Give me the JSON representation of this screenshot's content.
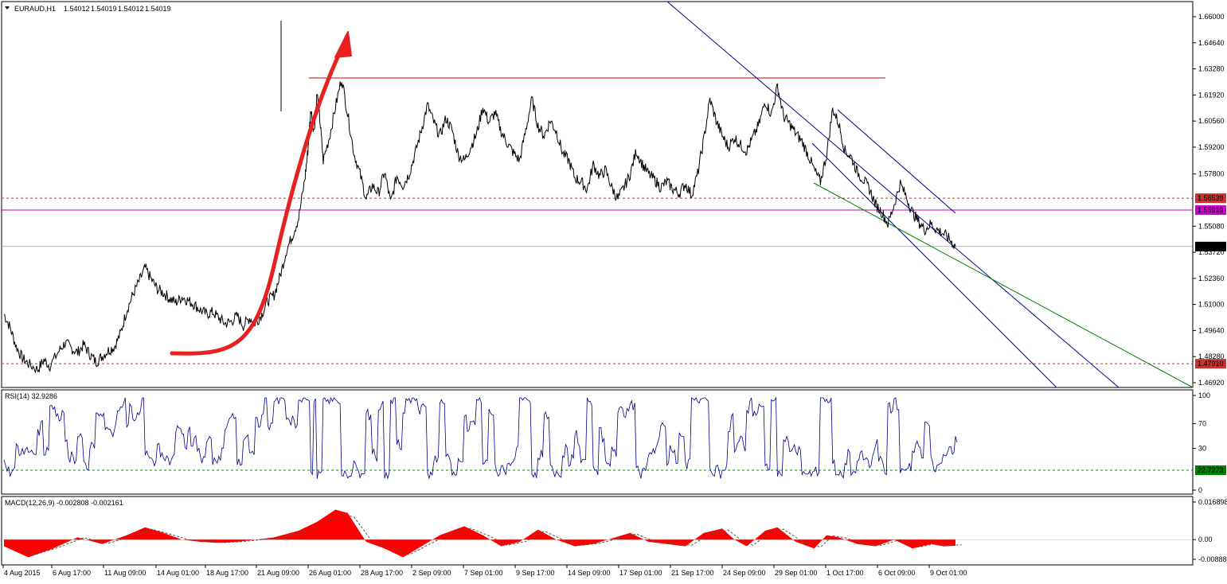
{
  "chart_data": {
    "type": "line",
    "symbol": "EURAUD,H1",
    "ohlc": {
      "open": "1.54012",
      "high": "1.54019",
      "low": "1.54012",
      "close": "1.54019"
    },
    "colors": {
      "price": "#000000",
      "resistance": "#cc0000",
      "support_magenta": "#cc00cc",
      "channel": "#00008b",
      "trend_green": "#008000",
      "arrow": "#e82020",
      "rsi": "#00008b",
      "rsi_level": "#008000",
      "macd_hist": "#ff0000",
      "macd_signal": "#555555",
      "last_bg": "#000000",
      "level_bg": "#c83232",
      "magenta_bg": "#cc00cc",
      "rsi_bg": "#008000"
    },
    "main": {
      "ylim": [
        1.6872,
        1.6668
      ],
      "ylim_data": [
        1.6672,
        1.6668
      ],
      "y_ticks": [
        "1.66000",
        "1.64640",
        "1.63280",
        "1.61920",
        "1.60560",
        "1.59200",
        "1.57800",
        "1.56539",
        "1.55919",
        "1.55080",
        "1.54019",
        "1.53720",
        "1.52360",
        "1.51000",
        "1.49640",
        "1.48280",
        "1.47910",
        "1.46920"
      ],
      "tick_values": [
        1.66,
        1.6464,
        1.6328,
        1.6192,
        1.6056,
        1.592,
        1.578,
        1.5508,
        1.5372,
        1.5236,
        1.51,
        1.4964,
        1.4828,
        1.4692
      ],
      "labels": {
        "last": "1.54019",
        "dashed_upper": "1.56539",
        "magenta": "1.55919",
        "dashed_lower": "1.47910"
      },
      "levels": {
        "dashed_upper": 1.56539,
        "magenta": 1.55919,
        "dashed_lower": 1.4791,
        "resistance": 1.629,
        "last": 1.54019
      },
      "price_series": [
        [
          0,
          1.505
        ],
        [
          2,
          1.498
        ],
        [
          4,
          1.488
        ],
        [
          6,
          1.482
        ],
        [
          8,
          1.479
        ],
        [
          11,
          1.476
        ],
        [
          13,
          1.481
        ],
        [
          15,
          1.478
        ],
        [
          18,
          1.486
        ],
        [
          20,
          1.49
        ],
        [
          22,
          1.487
        ],
        [
          24,
          1.485
        ],
        [
          26,
          1.489
        ],
        [
          28,
          1.484
        ],
        [
          30,
          1.48
        ],
        [
          32,
          1.483
        ],
        [
          34,
          1.486
        ],
        [
          36,
          1.488
        ],
        [
          38,
          1.495
        ],
        [
          40,
          1.507
        ],
        [
          42,
          1.515
        ],
        [
          44,
          1.522
        ],
        [
          46,
          1.529
        ],
        [
          48,
          1.523
        ],
        [
          50,
          1.518
        ],
        [
          52,
          1.516
        ],
        [
          54,
          1.513
        ],
        [
          56,
          1.511
        ],
        [
          58,
          1.514
        ],
        [
          60,
          1.512
        ],
        [
          62,
          1.51
        ],
        [
          64,
          1.507
        ],
        [
          66,
          1.505
        ],
        [
          68,
          1.506
        ],
        [
          70,
          1.503
        ],
        [
          72,
          1.5
        ],
        [
          74,
          1.501
        ],
        [
          76,
          1.504
        ],
        [
          78,
          1.499
        ],
        [
          80,
          1.503
        ],
        [
          82,
          1.5
        ],
        [
          84,
          1.505
        ],
        [
          86,
          1.512
        ],
        [
          88,
          1.515
        ],
        [
          90,
          1.525
        ],
        [
          92,
          1.538
        ],
        [
          94,
          1.546
        ],
        [
          96,
          1.555
        ],
        [
          98,
          1.575
        ],
        [
          99,
          1.59
        ],
        [
          100,
          1.612
        ],
        [
          101,
          1.6
        ],
        [
          102,
          1.62
        ],
        [
          103,
          1.605
        ],
        [
          104,
          1.585
        ],
        [
          106,
          1.597
        ],
        [
          108,
          1.613
        ],
        [
          110,
          1.628
        ],
        [
          112,
          1.609
        ],
        [
          114,
          1.589
        ],
        [
          116,
          1.578
        ],
        [
          118,
          1.565
        ],
        [
          120,
          1.572
        ],
        [
          122,
          1.568
        ],
        [
          124,
          1.579
        ],
        [
          126,
          1.563
        ],
        [
          128,
          1.577
        ],
        [
          130,
          1.572
        ],
        [
          132,
          1.578
        ],
        [
          134,
          1.589
        ],
        [
          136,
          1.601
        ],
        [
          138,
          1.614
        ],
        [
          140,
          1.605
        ],
        [
          142,
          1.598
        ],
        [
          144,
          1.607
        ],
        [
          146,
          1.601
        ],
        [
          148,
          1.588
        ],
        [
          150,
          1.585
        ],
        [
          152,
          1.592
        ],
        [
          154,
          1.599
        ],
        [
          156,
          1.613
        ],
        [
          158,
          1.605
        ],
        [
          160,
          1.61
        ],
        [
          162,
          1.6
        ],
        [
          164,
          1.594
        ],
        [
          166,
          1.589
        ],
        [
          168,
          1.585
        ],
        [
          170,
          1.601
        ],
        [
          172,
          1.617
        ],
        [
          174,
          1.603
        ],
        [
          176,
          1.598
        ],
        [
          178,
          1.606
        ],
        [
          180,
          1.6
        ],
        [
          182,
          1.589
        ],
        [
          184,
          1.585
        ],
        [
          186,
          1.576
        ],
        [
          188,
          1.574
        ],
        [
          190,
          1.57
        ],
        [
          192,
          1.583
        ],
        [
          194,
          1.577
        ],
        [
          196,
          1.58
        ],
        [
          198,
          1.571
        ],
        [
          200,
          1.565
        ],
        [
          202,
          1.571
        ],
        [
          204,
          1.578
        ],
        [
          206,
          1.59
        ],
        [
          208,
          1.583
        ],
        [
          210,
          1.578
        ],
        [
          212,
          1.575
        ],
        [
          214,
          1.571
        ],
        [
          216,
          1.574
        ],
        [
          218,
          1.57
        ],
        [
          220,
          1.568
        ],
        [
          222,
          1.573
        ],
        [
          224,
          1.567
        ],
        [
          226,
          1.578
        ],
        [
          228,
          1.596
        ],
        [
          230,
          1.617
        ],
        [
          232,
          1.606
        ],
        [
          234,
          1.598
        ],
        [
          236,
          1.592
        ],
        [
          238,
          1.597
        ],
        [
          240,
          1.593
        ],
        [
          242,
          1.59
        ],
        [
          244,
          1.597
        ],
        [
          246,
          1.604
        ],
        [
          248,
          1.616
        ],
        [
          250,
          1.609
        ],
        [
          252,
          1.624
        ],
        [
          254,
          1.608
        ],
        [
          256,
          1.604
        ],
        [
          258,
          1.599
        ],
        [
          260,
          1.595
        ],
        [
          262,
          1.588
        ],
        [
          264,
          1.58
        ],
        [
          266,
          1.574
        ],
        [
          268,
          1.588
        ],
        [
          270,
          1.612
        ],
        [
          272,
          1.604
        ],
        [
          274,
          1.59
        ],
        [
          276,
          1.587
        ],
        [
          278,
          1.579
        ],
        [
          280,
          1.575
        ],
        [
          282,
          1.57
        ],
        [
          284,
          1.562
        ],
        [
          286,
          1.558
        ],
        [
          288,
          1.552
        ],
        [
          290,
          1.562
        ],
        [
          292,
          1.573
        ],
        [
          294,
          1.566
        ],
        [
          296,
          1.558
        ],
        [
          298,
          1.553
        ],
        [
          300,
          1.549
        ],
        [
          302,
          1.552
        ],
        [
          304,
          1.549
        ],
        [
          306,
          1.547
        ],
        [
          308,
          1.544
        ],
        [
          310,
          1.5402
        ]
      ],
      "x_ticks": [
        "4 Aug 2015",
        "6 Aug 17:00",
        "11 Aug 09:00",
        "14 Aug 01:00",
        "18 Aug 17:00",
        "21 Aug 09:00",
        "26 Aug 01:00",
        "28 Aug 17:00",
        "2 Sep 09:00",
        "7 Sep 01:00",
        "9 Sep 17:00",
        "14 Sep 09:00",
        "17 Sep 01:00",
        "21 Sep 17:00",
        "24 Sep 09:00",
        "29 Sep 01:00",
        "1 Oct 17:00",
        "6 Oct 09:00",
        "9 Oct 01:00"
      ]
    },
    "rsi": {
      "title": "RSI(14) 32.9286",
      "y_ticks": [
        "100",
        "70",
        "30",
        "0"
      ],
      "tick_values": [
        100,
        70,
        30,
        0
      ],
      "level_label": "22.7273",
      "level": 22.7273,
      "ylim": [
        0,
        100
      ]
    },
    "macd": {
      "title": "MACD(12,26,9) -0.002808 -0.002161",
      "y_ticks": [
        "0.016898",
        "0.00",
        "-0.00888"
      ],
      "tick_values": [
        0.016898,
        0.0,
        -0.00888
      ],
      "ylim": [
        -0.0096,
        0.0174
      ]
    }
  }
}
